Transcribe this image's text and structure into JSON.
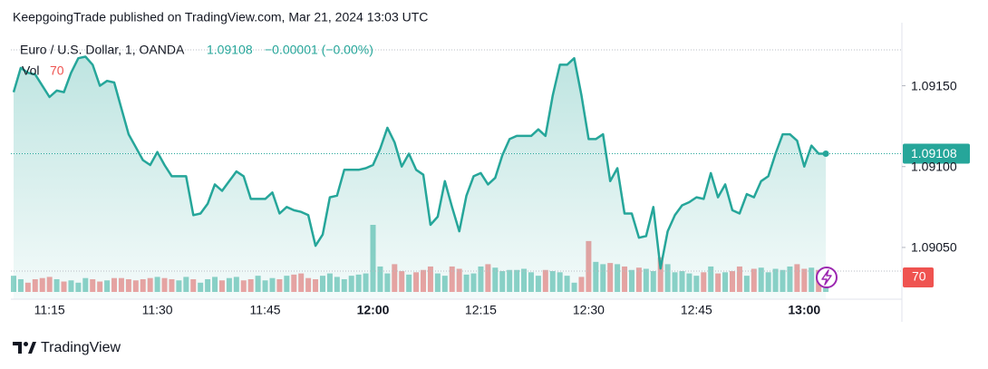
{
  "header": "KeepgoingTrade published on TradingView.com, Mar 21, 2024 13:03 UTC",
  "footer": {
    "brand": "TradingView"
  },
  "chart_data": {
    "type": "area",
    "change_label": "−0.00001 (−0.00%)",
    "categories": [
      null,
      null,
      null,
      null,
      null,
      "11:15",
      null,
      null,
      null,
      null,
      null,
      null,
      null,
      null,
      null,
      null,
      null,
      null,
      null,
      null,
      "11:30",
      null,
      null,
      null,
      null,
      null,
      null,
      null,
      null,
      null,
      null,
      null,
      null,
      null,
      null,
      "11:45",
      null,
      null,
      null,
      null,
      null,
      null,
      null,
      null,
      null,
      null,
      null,
      null,
      null,
      null,
      "12:00",
      null,
      null,
      null,
      null,
      null,
      null,
      null,
      null,
      null,
      null,
      null,
      null,
      null,
      null,
      "12:15",
      null,
      null,
      null,
      null,
      null,
      null,
      null,
      null,
      null,
      null,
      null,
      null,
      null,
      null,
      "12:30",
      null,
      null,
      null,
      null,
      null,
      null,
      null,
      null,
      null,
      null,
      null,
      null,
      null,
      null,
      "12:45",
      null,
      null,
      null,
      null,
      null,
      null,
      null,
      null,
      null,
      null,
      null,
      null,
      null,
      null,
      "13:00",
      null,
      null,
      null
    ],
    "series": [
      {
        "name": "Euro / U.S. Dollar, 1, OANDA",
        "color": "#26a69a",
        "values": [
          1.09146,
          1.09161,
          1.09158,
          1.09157,
          1.0915,
          1.09143,
          1.09147,
          1.09146,
          1.09158,
          1.09167,
          1.09168,
          1.09163,
          1.0915,
          1.09153,
          1.09152,
          1.09136,
          1.0912,
          1.09112,
          1.09104,
          1.09101,
          1.09109,
          1.09101,
          1.09094,
          1.09094,
          1.09094,
          1.0907,
          1.09071,
          1.09077,
          1.09089,
          1.09085,
          1.09091,
          1.09097,
          1.09094,
          1.0908,
          1.0908,
          1.0908,
          1.09084,
          1.09071,
          1.09075,
          1.09073,
          1.09072,
          1.0907,
          1.09051,
          1.09058,
          1.09081,
          1.09082,
          1.09098,
          1.09098,
          1.09098,
          1.09099,
          1.09101,
          1.09111,
          1.09124,
          1.09115,
          1.091,
          1.09108,
          1.09098,
          1.09095,
          1.09064,
          1.09069,
          1.09091,
          1.09075,
          1.0906,
          1.09082,
          1.09094,
          1.09096,
          1.09089,
          1.09093,
          1.09107,
          1.09117,
          1.09119,
          1.09119,
          1.09119,
          1.09123,
          1.09119,
          1.09144,
          1.09163,
          1.09163,
          1.09167,
          1.09144,
          1.09117,
          1.09117,
          1.0912,
          1.09091,
          1.09099,
          1.09071,
          1.09071,
          1.09056,
          1.09057,
          1.09075,
          1.09037,
          1.0906,
          1.0907,
          1.09076,
          1.09078,
          1.09081,
          1.0908,
          1.09096,
          1.09081,
          1.09089,
          1.09073,
          1.09071,
          1.09083,
          1.09081,
          1.09091,
          1.09094,
          1.09108,
          1.0912,
          1.0912,
          1.09116,
          1.091,
          1.09113,
          1.09108,
          1.09108
        ]
      }
    ],
    "volume": {
      "name": "Vol",
      "up_color": "#8fd3c9",
      "down_color": "#f2a3a3",
      "values": [
        70,
        55,
        40,
        55,
        60,
        65,
        55,
        45,
        50,
        40,
        60,
        55,
        45,
        50,
        60,
        60,
        55,
        50,
        55,
        60,
        65,
        60,
        55,
        50,
        65,
        55,
        40,
        55,
        65,
        50,
        60,
        65,
        50,
        55,
        70,
        50,
        60,
        55,
        70,
        75,
        80,
        60,
        55,
        70,
        80,
        65,
        55,
        70,
        75,
        80,
        290,
        110,
        80,
        120,
        90,
        75,
        85,
        95,
        110,
        80,
        70,
        110,
        100,
        75,
        80,
        110,
        120,
        105,
        90,
        95,
        95,
        100,
        85,
        70,
        95,
        90,
        85,
        70,
        40,
        65,
        220,
        130,
        120,
        125,
        120,
        110,
        95,
        105,
        100,
        90,
        150,
        120,
        85,
        90,
        80,
        70,
        85,
        110,
        80,
        85,
        90,
        110,
        70,
        100,
        105,
        85,
        100,
        95,
        110,
        120,
        100,
        105,
        95,
        70
      ]
    },
    "ylim": [
      1.09018,
      1.09189
    ],
    "yticks": [
      {
        "value": 1.0905,
        "label": "1.09050"
      },
      {
        "value": 1.091,
        "label": "1.09100"
      },
      {
        "value": 1.0915,
        "label": "1.09150"
      }
    ],
    "grid": false
  }
}
